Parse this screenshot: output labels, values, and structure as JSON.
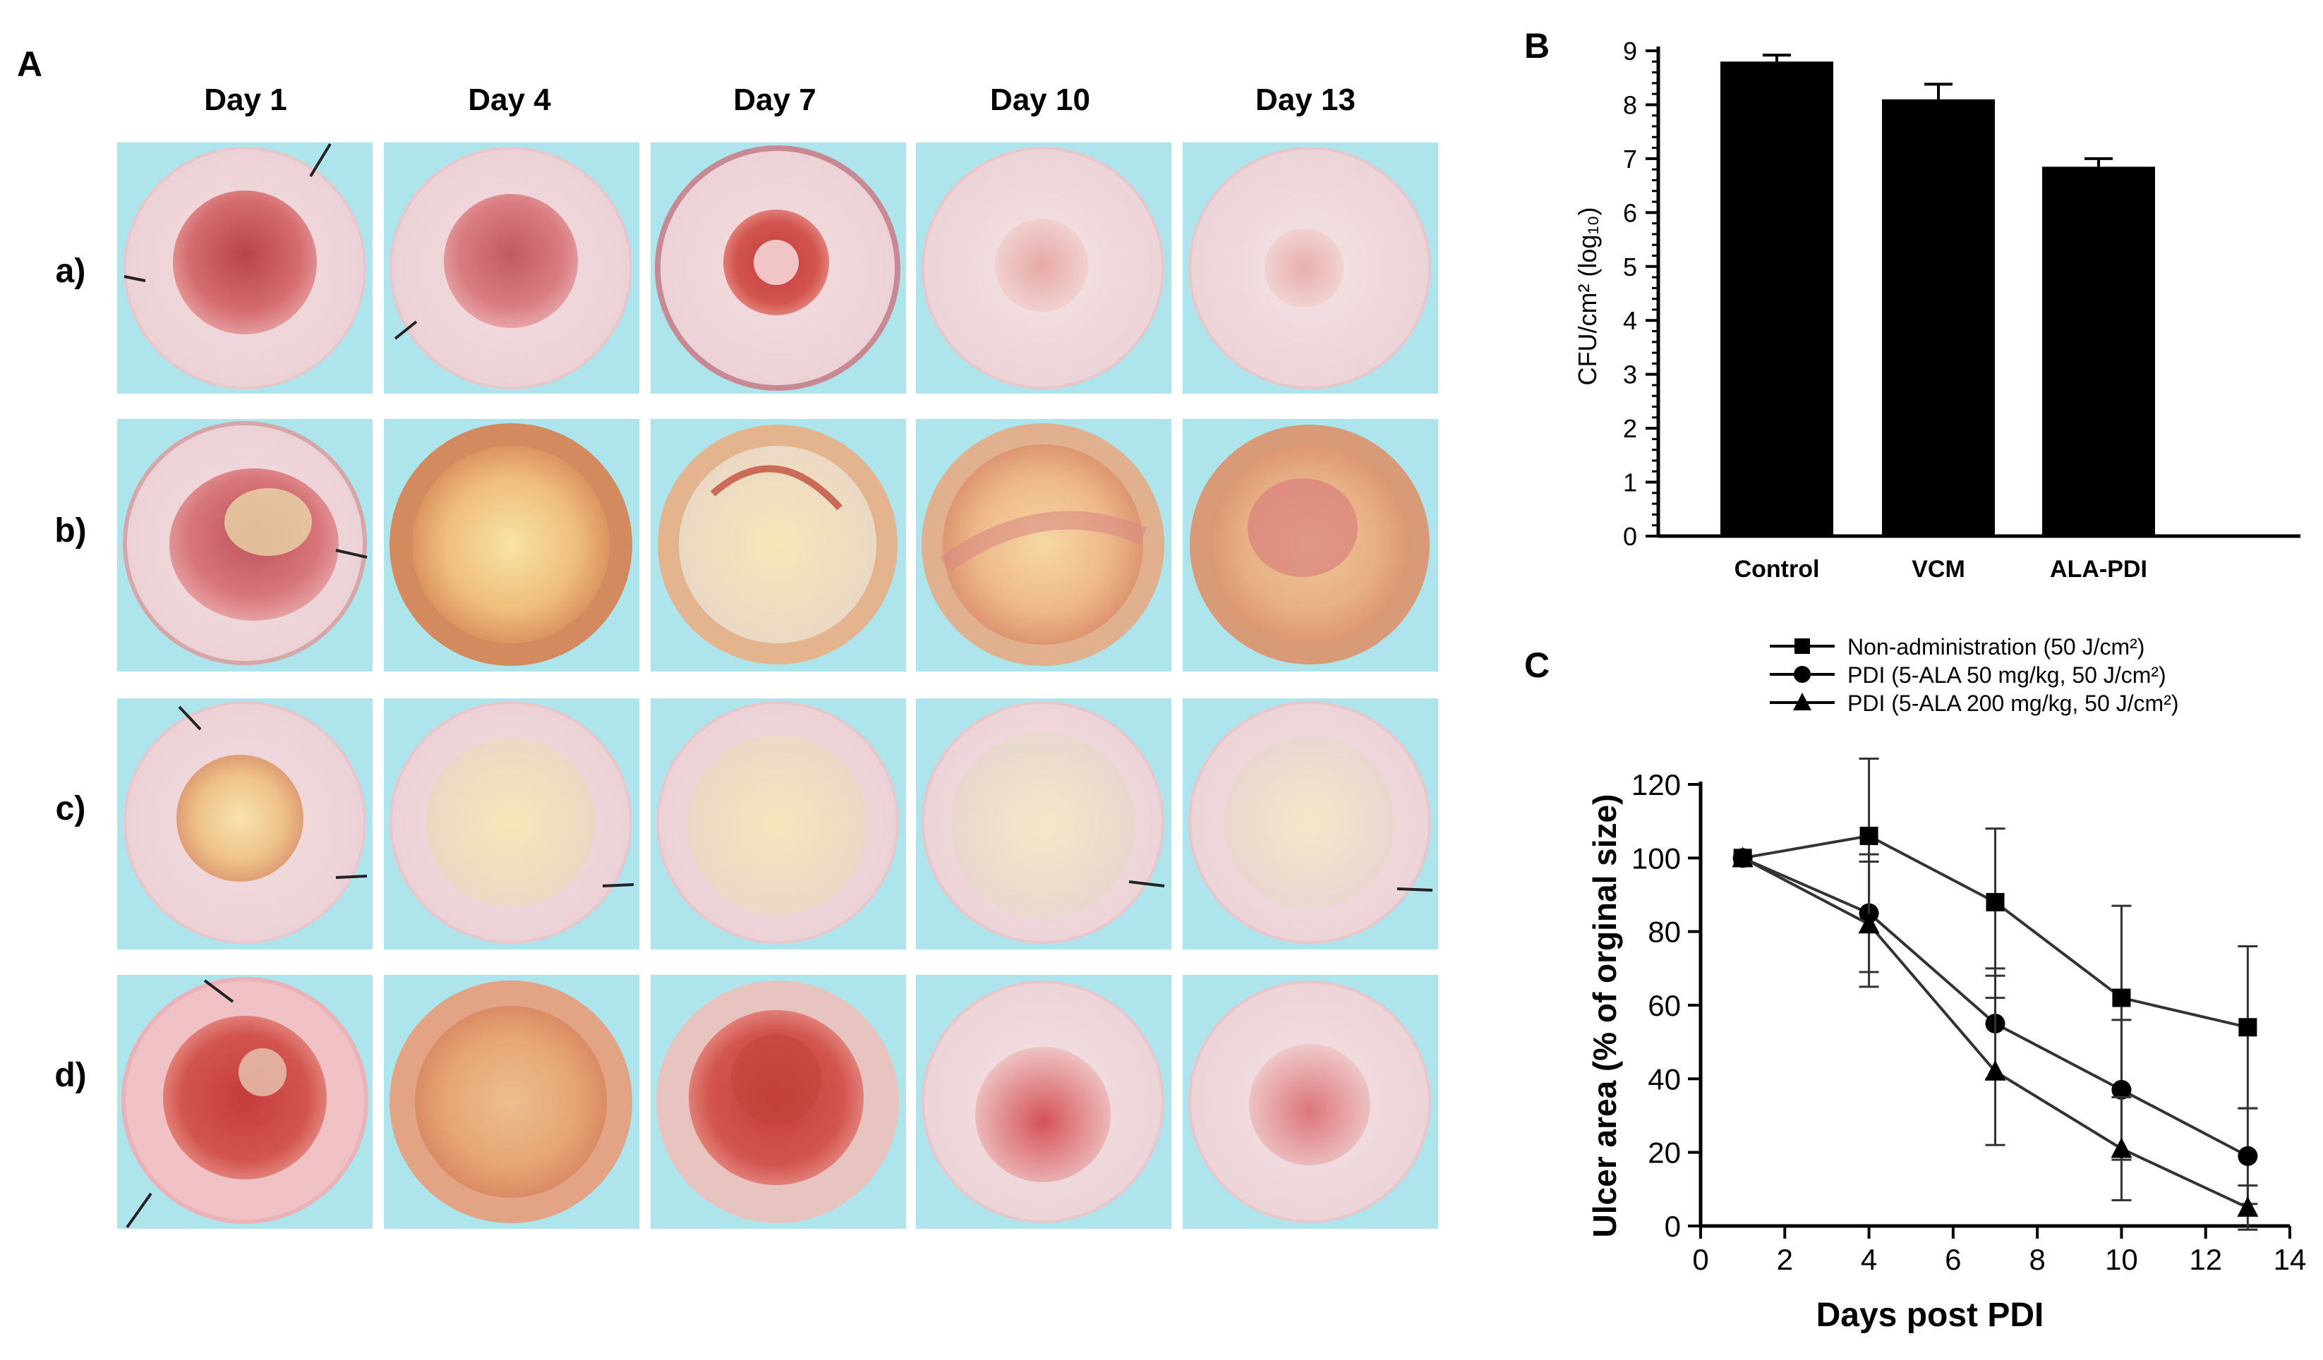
{
  "panel_a": {
    "label": "A",
    "columns": [
      "Day 1",
      "Day 4",
      "Day 7",
      "Day 10",
      "Day 13"
    ],
    "rows": [
      "a)",
      "b)",
      "c)",
      "d)"
    ]
  },
  "colors": {
    "photo_background": "#aee4ec",
    "bar_fill": "#000000",
    "line": "#333333"
  },
  "chart_data": [
    {
      "panel": "B",
      "type": "bar",
      "categories": [
        "Control",
        "VCM",
        "ALA-PDI"
      ],
      "values": [
        8.8,
        8.1,
        6.85
      ],
      "errors": [
        0.12,
        0.28,
        0.15
      ],
      "ylabel": "CFU/cm² (log₁₀)",
      "ylim": [
        0,
        9
      ],
      "yticks": [
        "0",
        "1",
        "2",
        "3",
        "4",
        "5",
        "6",
        "7",
        "8",
        "9"
      ]
    },
    {
      "panel": "C",
      "type": "line",
      "xlabel": "Days post PDI",
      "ylabel": "Ulcer area (% of orginal size)",
      "xlim": [
        0,
        14
      ],
      "ylim": [
        0,
        120
      ],
      "xticks": [
        "0",
        "2",
        "4",
        "6",
        "8",
        "10",
        "12",
        "14"
      ],
      "yticks": [
        "0",
        "20",
        "40",
        "60",
        "80",
        "100",
        "120"
      ],
      "x": [
        1,
        4,
        7,
        10,
        13
      ],
      "series": [
        {
          "name": "Non-administration (50 J/cm²)",
          "marker": "square",
          "values": [
            100,
            106,
            88,
            62,
            54
          ],
          "errors": [
            0,
            21,
            20,
            25,
            22
          ]
        },
        {
          "name": "PDI (5-ALA 50 mg/kg, 50 J/cm²)",
          "marker": "circle",
          "values": [
            100,
            85,
            55,
            37,
            19
          ],
          "errors": [
            0,
            16,
            15,
            19,
            13
          ]
        },
        {
          "name": "PDI (5-ALA 200 mg/kg, 50 J/cm²)",
          "marker": "triangle",
          "values": [
            100,
            82,
            42,
            21,
            5
          ],
          "errors": [
            0,
            17,
            20,
            14,
            6
          ]
        }
      ]
    }
  ]
}
